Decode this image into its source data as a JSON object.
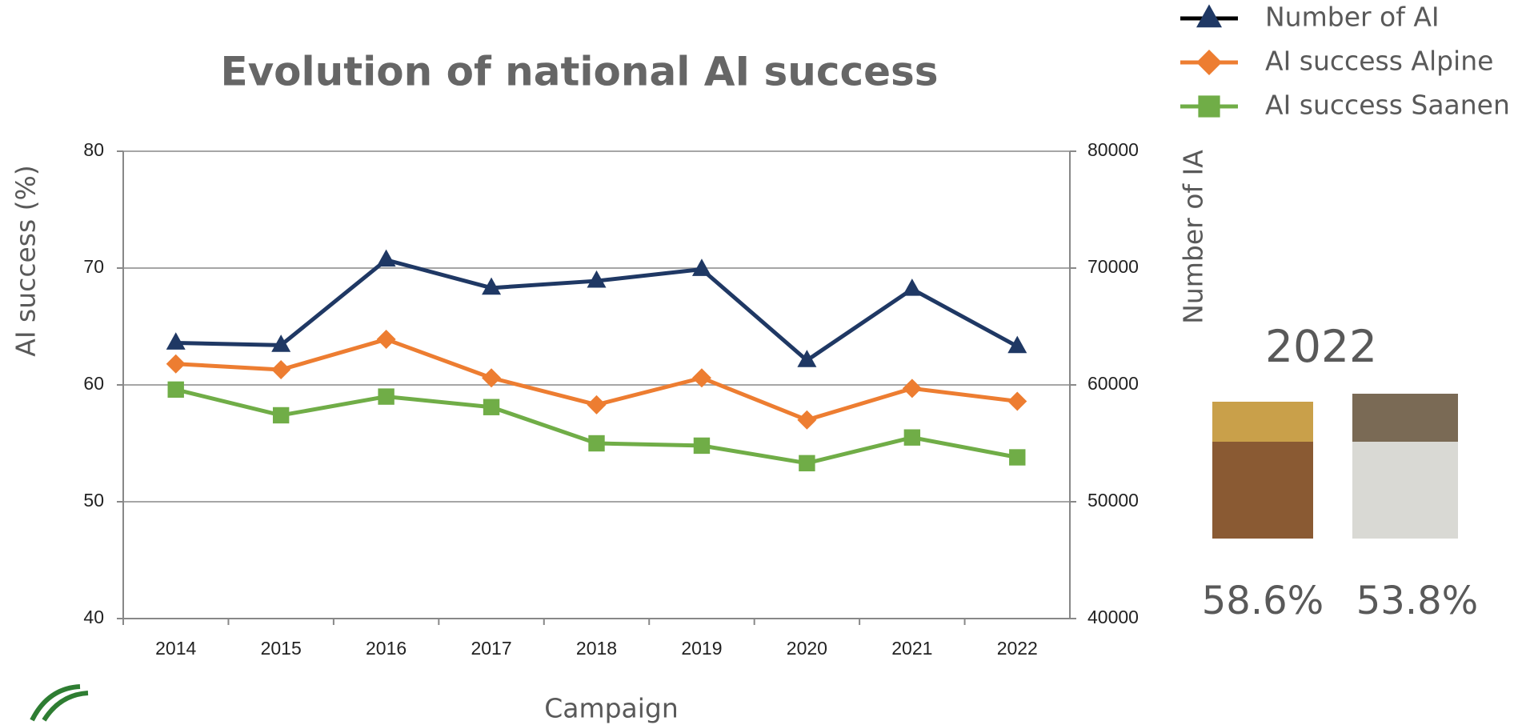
{
  "chart_data": {
    "type": "line",
    "title": "Evolution of national AI success",
    "x_label": "Campaign",
    "y_label": "AI success (%)",
    "y2_label": "Number of IA",
    "categories": [
      "2014",
      "2015",
      "2016",
      "2017",
      "2018",
      "2019",
      "2020",
      "2021",
      "2022"
    ],
    "series": [
      {
        "name": "Number of AI",
        "color": "#1f3864",
        "marker": "triangle",
        "axis": "y2",
        "values": [
          63600,
          63400,
          70700,
          68300,
          68900,
          69900,
          62100,
          68200,
          63300
        ]
      },
      {
        "name": "AI success Alpine",
        "color": "#ed7d31",
        "marker": "diamond",
        "axis": "y",
        "values": [
          61.8,
          61.3,
          63.9,
          60.6,
          58.3,
          60.6,
          57.0,
          59.7,
          58.6
        ]
      },
      {
        "name": "AI success Saanen",
        "color": "#70ad47",
        "marker": "square",
        "axis": "y",
        "values": [
          59.6,
          57.4,
          59.0,
          58.1,
          55.0,
          54.8,
          53.3,
          55.5,
          53.8
        ]
      }
    ],
    "ylim": [
      40,
      80
    ],
    "yticks": [
      40,
      50,
      60,
      70,
      80
    ],
    "y2lim": [
      40000,
      80000
    ],
    "y2ticks": [
      40000,
      50000,
      60000,
      70000,
      80000
    ],
    "grid": true,
    "legend": "top-right",
    "annotations": [
      "2022",
      "58.6%",
      "53.8%"
    ]
  }
}
